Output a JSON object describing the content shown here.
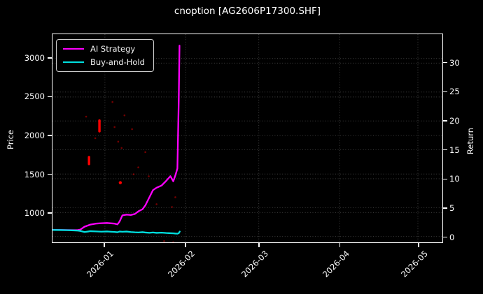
{
  "title": "cnoption [AG2606P17300.SHF]",
  "axes": {
    "left_label": "Price",
    "right_label": "Return"
  },
  "legend": {
    "items": [
      {
        "label": "AI Strategy"
      },
      {
        "label": "Buy-and-Hold"
      }
    ]
  },
  "colors": {
    "background": "#000000",
    "foreground": "#ffffff",
    "grid": "rgba(255,255,255,0.28)",
    "ai_strategy": "#ff00ff",
    "buy_and_hold": "#00e0e0",
    "marker": "#ff0000"
  },
  "chart_data": {
    "type": "line",
    "title": "cnoption [AG2606P17300.SHF]",
    "xlabel": "",
    "ylabel_left": "Price",
    "ylabel_right": "Return",
    "x_unit": "days since 2026-01-01",
    "xlim": [
      -20.1,
      129.4
    ],
    "ylim_price": [
      613,
      3315
    ],
    "ylim_return": [
      -1,
      35
    ],
    "grid": true,
    "legend_position": "upper left",
    "x_ticks": [
      {
        "day": 0,
        "label": "2026-01"
      },
      {
        "day": 31,
        "label": "2026-02"
      },
      {
        "day": 59,
        "label": "2026-03"
      },
      {
        "day": 90,
        "label": "2026-04"
      },
      {
        "day": 120,
        "label": "2026-05"
      }
    ],
    "price_ticks": [
      1000,
      1500,
      2000,
      2500,
      3000
    ],
    "return_ticks": [
      0,
      5,
      10,
      15,
      20,
      25,
      30
    ],
    "series": [
      {
        "name": "AI Strategy",
        "color": "#ff00ff",
        "axis": "price",
        "points": [
          [
            -19.8,
            775
          ],
          [
            -17.1,
            773
          ],
          [
            -14.4,
            772
          ],
          [
            -11.8,
            771
          ],
          [
            -10.4,
            772
          ],
          [
            -9.4,
            779
          ],
          [
            -7.8,
            816
          ],
          [
            -5.6,
            843
          ],
          [
            -3.5,
            856
          ],
          [
            -1.3,
            861
          ],
          [
            0.8,
            864
          ],
          [
            2.4,
            860
          ],
          [
            3.7,
            856
          ],
          [
            4.8,
            846
          ],
          [
            5.6,
            882
          ],
          [
            6.7,
            963
          ],
          [
            8.3,
            972
          ],
          [
            9.9,
            968
          ],
          [
            11.5,
            981
          ],
          [
            12.8,
            1015
          ],
          [
            14.4,
            1042
          ],
          [
            15.5,
            1092
          ],
          [
            17.1,
            1200
          ],
          [
            18.4,
            1290
          ],
          [
            19.8,
            1322
          ],
          [
            21.7,
            1350
          ],
          [
            23.5,
            1412
          ],
          [
            25.1,
            1472
          ],
          [
            26.2,
            1405
          ],
          [
            27.0,
            1482
          ],
          [
            27.8,
            1572
          ],
          [
            28.3,
            2450
          ],
          [
            28.6,
            3168
          ]
        ]
      },
      {
        "name": "Buy-and-Hold",
        "color": "#00e0e0",
        "axis": "price",
        "points": [
          [
            -19.8,
            773
          ],
          [
            -17.1,
            772
          ],
          [
            -14.4,
            770
          ],
          [
            -11.8,
            768
          ],
          [
            -10.4,
            765
          ],
          [
            -9.4,
            760
          ],
          [
            -7.8,
            747
          ],
          [
            -6.5,
            753
          ],
          [
            -5.6,
            758
          ],
          [
            -3.5,
            755
          ],
          [
            -1.3,
            751
          ],
          [
            0.8,
            754
          ],
          [
            2.4,
            750
          ],
          [
            3.7,
            748
          ],
          [
            4.8,
            744
          ],
          [
            5.6,
            753
          ],
          [
            6.7,
            750
          ],
          [
            8.3,
            753
          ],
          [
            9.9,
            747
          ],
          [
            11.5,
            743
          ],
          [
            12.8,
            741
          ],
          [
            14.4,
            745
          ],
          [
            15.5,
            740
          ],
          [
            17.1,
            737
          ],
          [
            18.4,
            741
          ],
          [
            19.8,
            736
          ],
          [
            21.7,
            739
          ],
          [
            23.5,
            734
          ],
          [
            25.1,
            731
          ],
          [
            26.2,
            729
          ],
          [
            27.0,
            727
          ],
          [
            27.8,
            725
          ],
          [
            28.3,
            731
          ],
          [
            28.7,
            753
          ]
        ]
      }
    ],
    "markers": {
      "color": "#ff0000",
      "streaks": [
        {
          "day": -2.1,
          "price_from": 2055,
          "price_to": 2195
        },
        {
          "day": -6.1,
          "price_from": 1630,
          "price_to": 1720
        }
      ],
      "dots": [
        {
          "day": 5.9,
          "price": 1388,
          "bright": true
        },
        {
          "day": -7.2,
          "price": 2245
        },
        {
          "day": 2.9,
          "price": 2435
        },
        {
          "day": 7.5,
          "price": 2262
        },
        {
          "day": 3.7,
          "price": 2110
        },
        {
          "day": 10.4,
          "price": 2082
        },
        {
          "day": -3.7,
          "price": 1965
        },
        {
          "day": 5.1,
          "price": 1920
        },
        {
          "day": 6.4,
          "price": 1838
        },
        {
          "day": 15.5,
          "price": 1784
        },
        {
          "day": 12.8,
          "price": 1586
        },
        {
          "day": 11.0,
          "price": 1496
        },
        {
          "day": 16.8,
          "price": 1470
        },
        {
          "day": 27.0,
          "price": 1198
        },
        {
          "day": 19.8,
          "price": 1108
        },
        {
          "day": 25.7,
          "price": 1072
        },
        {
          "day": 22.7,
          "price": 628
        },
        {
          "day": 26.2,
          "price": 615
        }
      ]
    }
  }
}
